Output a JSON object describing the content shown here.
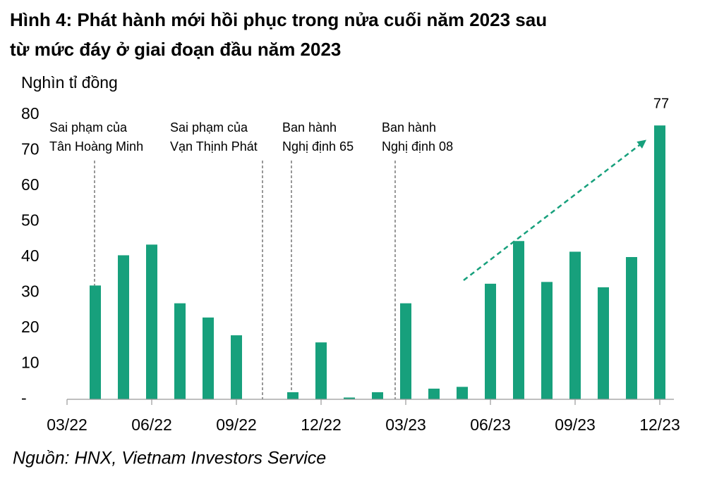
{
  "chart_data": {
    "type": "bar",
    "title": [
      "Hình 4: Phát hành mới hồi phục trong nửa cuối năm 2023 sau",
      "từ mức đáy ở giai đoạn đầu năm 2023"
    ],
    "y_axis_label": "Nghìn tỉ đồng",
    "categories": [
      "03/22",
      null,
      null,
      "06/22",
      null,
      null,
      "09/22",
      null,
      null,
      "12/22",
      null,
      null,
      "03/23",
      null,
      null,
      "06/23",
      null,
      null,
      "09/23",
      null,
      null,
      "12/23"
    ],
    "values": [
      null,
      32,
      40.5,
      43.5,
      27,
      23,
      18,
      null,
      2,
      16,
      0.5,
      2,
      27,
      3,
      3.5,
      32.5,
      44.5,
      33,
      41.5,
      31.5,
      40,
      77
    ],
    "color": "#17a07c",
    "ylim": [
      0,
      80
    ],
    "yticks": [
      {
        "value": 0,
        "label": "-"
      },
      10,
      20,
      30,
      40,
      50,
      60,
      70,
      80
    ],
    "annotations": [
      {
        "lines": [
          "Sai phạm của",
          "Tân Hoàng Minh"
        ]
      },
      {
        "lines": [
          "Sai phạm của",
          "Vạn Thịnh Phát"
        ]
      },
      {
        "lines": [
          "Ban hành",
          "Nghị định 65"
        ]
      },
      {
        "lines": [
          "Ban hành",
          "Nghị định 08"
        ]
      }
    ],
    "source": "Nguồn: HNX, Vietnam Investors Service"
  }
}
